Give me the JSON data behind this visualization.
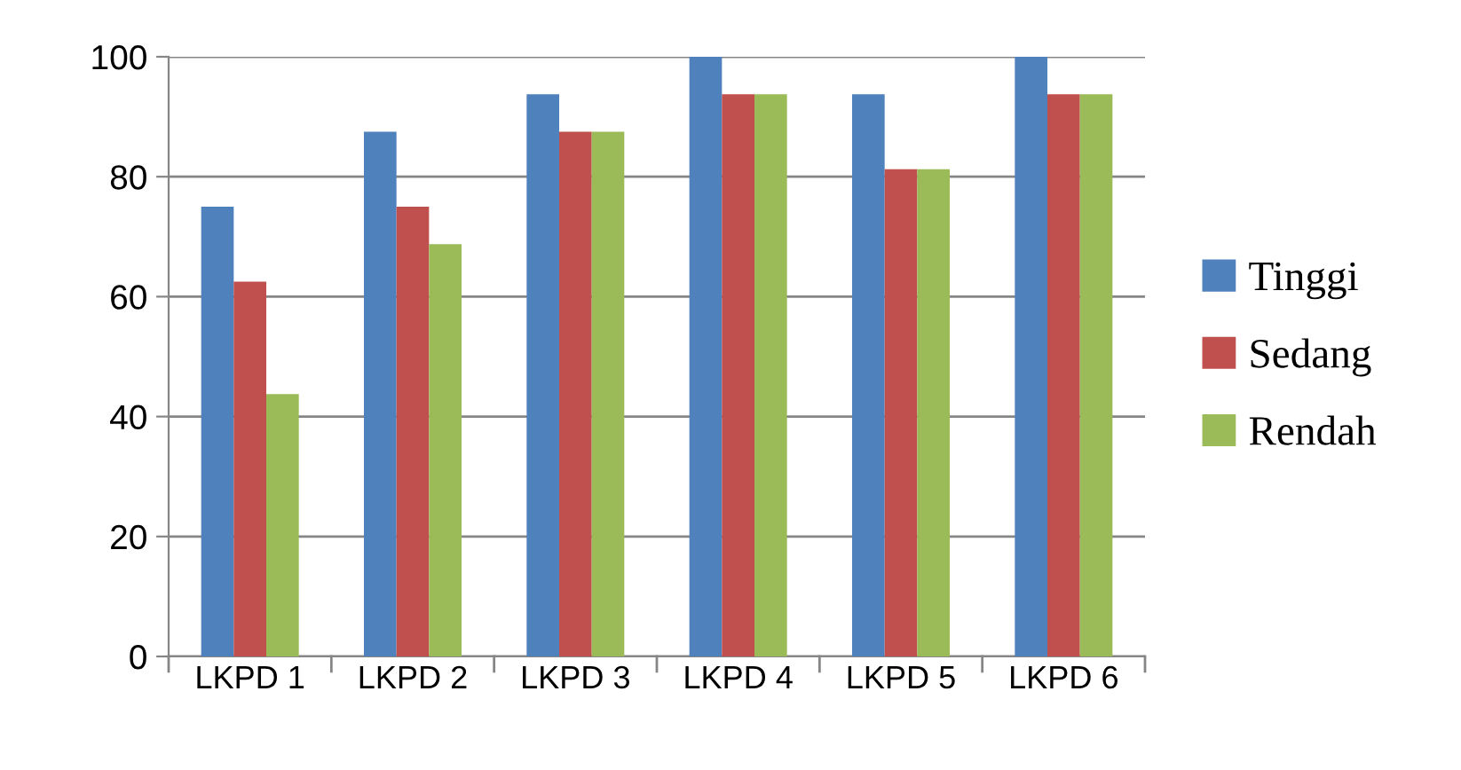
{
  "chart_data": {
    "type": "bar",
    "categories": [
      "LKPD 1",
      "LKPD 2",
      "LKPD 3",
      "LKPD 4",
      "LKPD 5",
      "LKPD 6"
    ],
    "series": [
      {
        "name": "Tinggi",
        "color": "#4f81bd",
        "values": [
          75,
          87.5,
          93.75,
          100,
          93.75,
          100
        ]
      },
      {
        "name": "Sedang",
        "color": "#c0504d",
        "values": [
          62.5,
          75,
          87.5,
          93.75,
          81.25,
          93.75
        ]
      },
      {
        "name": "Rendah",
        "color": "#9bbb59",
        "values": [
          43.75,
          68.75,
          87.5,
          93.75,
          81.25,
          93.75
        ]
      }
    ],
    "ylim": [
      0,
      100
    ],
    "yticks": [
      0,
      20,
      40,
      60,
      80,
      100
    ],
    "grid": "y",
    "legend": "right"
  }
}
